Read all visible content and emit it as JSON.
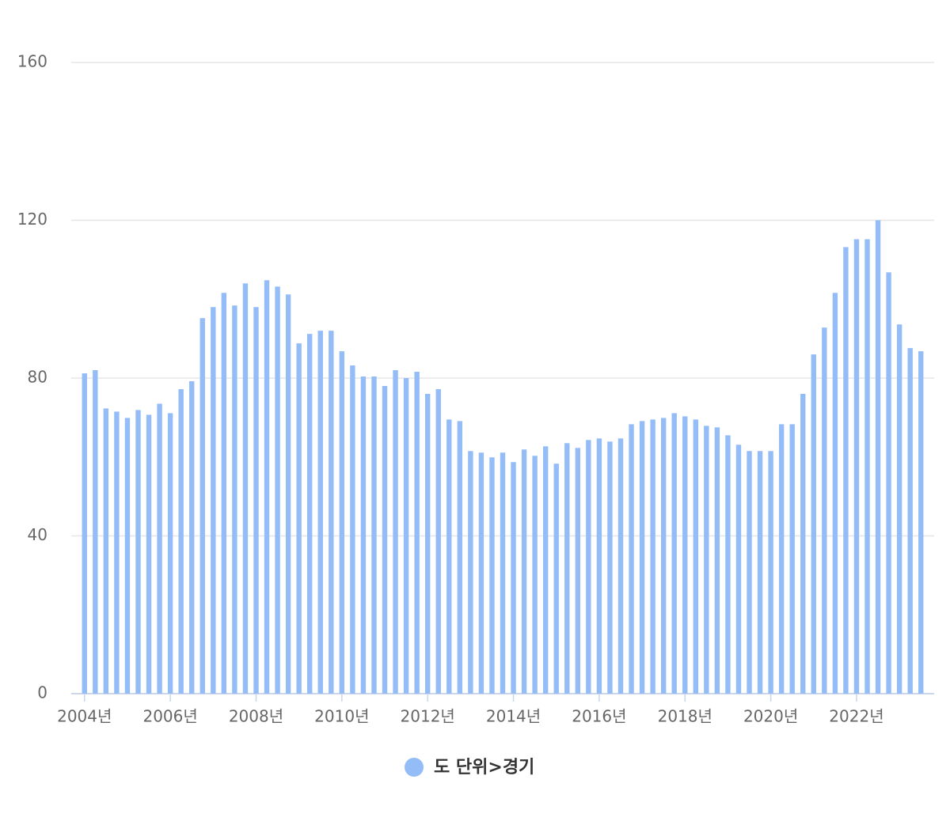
{
  "chart_data": {
    "type": "bar",
    "categories": [
      "2004년",
      null,
      null,
      null,
      null,
      null,
      null,
      null,
      "2006년",
      null,
      null,
      null,
      null,
      null,
      null,
      null,
      "2008년",
      null,
      null,
      null,
      null,
      null,
      null,
      null,
      "2010년",
      null,
      null,
      null,
      null,
      null,
      null,
      null,
      "2012년",
      null,
      null,
      null,
      null,
      null,
      null,
      null,
      "2014년",
      null,
      null,
      null,
      null,
      null,
      null,
      null,
      "2016년",
      null,
      null,
      null,
      null,
      null,
      null,
      null,
      "2018년",
      null,
      null,
      null,
      null,
      null,
      null,
      null,
      "2020년",
      null,
      null,
      null,
      null,
      null,
      null,
      null,
      "2022년",
      null,
      null,
      null,
      null,
      null,
      null
    ],
    "series": [
      {
        "name": "도 단위>경기",
        "color": "#94bdf7",
        "values": [
          81.2,
          82.0,
          72.3,
          71.5,
          69.9,
          71.9,
          70.7,
          73.5,
          71.1,
          77.2,
          79.2,
          95.2,
          98.0,
          101.6,
          98.4,
          104.0,
          98.0,
          104.8,
          103.2,
          101.2,
          88.8,
          91.2,
          92.0,
          92.0,
          86.8,
          83.2,
          80.4,
          80.4,
          78.0,
          82.0,
          80.0,
          81.6,
          76.0,
          77.2,
          69.5,
          69.1,
          61.5,
          61.1,
          59.9,
          61.1,
          58.7,
          61.9,
          60.3,
          62.7,
          58.3,
          63.5,
          62.3,
          64.3,
          64.7,
          63.9,
          64.7,
          68.3,
          69.1,
          69.5,
          69.9,
          71.1,
          70.3,
          69.5,
          67.9,
          67.5,
          65.5,
          63.1,
          61.5,
          61.5,
          61.5,
          68.3,
          68.3,
          76.0,
          86.0,
          92.8,
          101.6,
          113.2,
          115.2,
          115.2,
          120.0,
          106.8,
          93.6,
          87.6,
          86.8
        ]
      }
    ],
    "ylim": [
      0,
      160
    ],
    "yticks": [
      0,
      40,
      80,
      120,
      160
    ],
    "grid": true,
    "legend": "bottom"
  }
}
